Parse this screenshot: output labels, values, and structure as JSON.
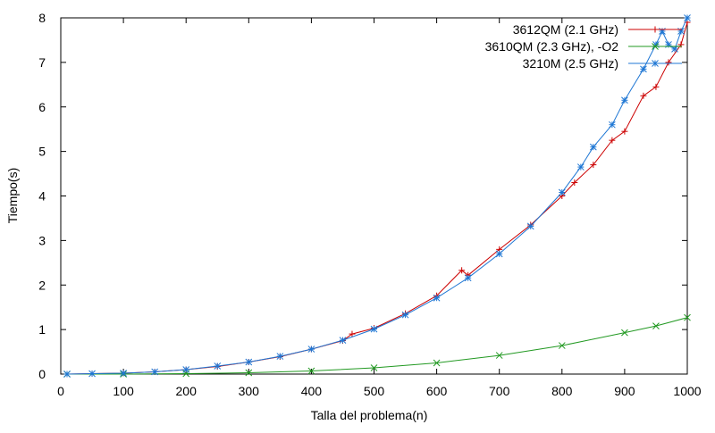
{
  "chart_data": {
    "type": "line",
    "title": "",
    "xlabel": "Talla del problema(n)",
    "ylabel": "Tiempo(s)",
    "xlim": [
      0,
      1000
    ],
    "ylim": [
      0,
      8
    ],
    "xticks": [
      0,
      100,
      200,
      300,
      400,
      500,
      600,
      700,
      800,
      900,
      1000
    ],
    "yticks": [
      0,
      1,
      2,
      3,
      4,
      5,
      6,
      7,
      8
    ],
    "grid": false,
    "legend_position": "top-right",
    "series": [
      {
        "name": "3612QM (2.1 GHz)",
        "color": "#cc0000",
        "marker": "plus",
        "x": [
          10,
          50,
          100,
          150,
          200,
          250,
          300,
          350,
          400,
          450,
          465,
          500,
          550,
          600,
          640,
          650,
          700,
          750,
          800,
          820,
          850,
          880,
          900,
          930,
          950,
          970,
          990,
          1000
        ],
        "y": [
          0.0,
          0.01,
          0.02,
          0.05,
          0.1,
          0.17,
          0.27,
          0.39,
          0.56,
          0.75,
          0.9,
          1.03,
          1.36,
          1.76,
          2.33,
          2.22,
          2.8,
          3.35,
          4.0,
          4.3,
          4.7,
          5.25,
          5.45,
          6.25,
          6.45,
          7.0,
          7.4,
          7.9
        ]
      },
      {
        "name": "3610QM (2.3 GHz), -O2",
        "color": "#229922",
        "marker": "cross",
        "x": [
          10,
          100,
          200,
          300,
          400,
          500,
          600,
          700,
          800,
          900,
          950,
          1000
        ],
        "y": [
          0.0,
          0.0,
          0.01,
          0.03,
          0.07,
          0.14,
          0.25,
          0.42,
          0.64,
          0.93,
          1.08,
          1.27
        ]
      },
      {
        "name": "3210M (2.5 GHz)",
        "color": "#1f77d4",
        "marker": "star",
        "x": [
          10,
          50,
          100,
          150,
          200,
          250,
          300,
          350,
          400,
          450,
          500,
          550,
          600,
          650,
          700,
          750,
          800,
          830,
          850,
          880,
          900,
          930,
          950,
          960,
          970,
          980,
          990,
          1000
        ],
        "y": [
          0.0,
          0.01,
          0.02,
          0.05,
          0.1,
          0.18,
          0.27,
          0.4,
          0.56,
          0.76,
          1.01,
          1.33,
          1.71,
          2.16,
          2.7,
          3.32,
          4.08,
          4.65,
          5.1,
          5.6,
          6.15,
          6.85,
          7.4,
          7.7,
          7.4,
          7.3,
          7.7,
          8.0
        ]
      }
    ]
  }
}
